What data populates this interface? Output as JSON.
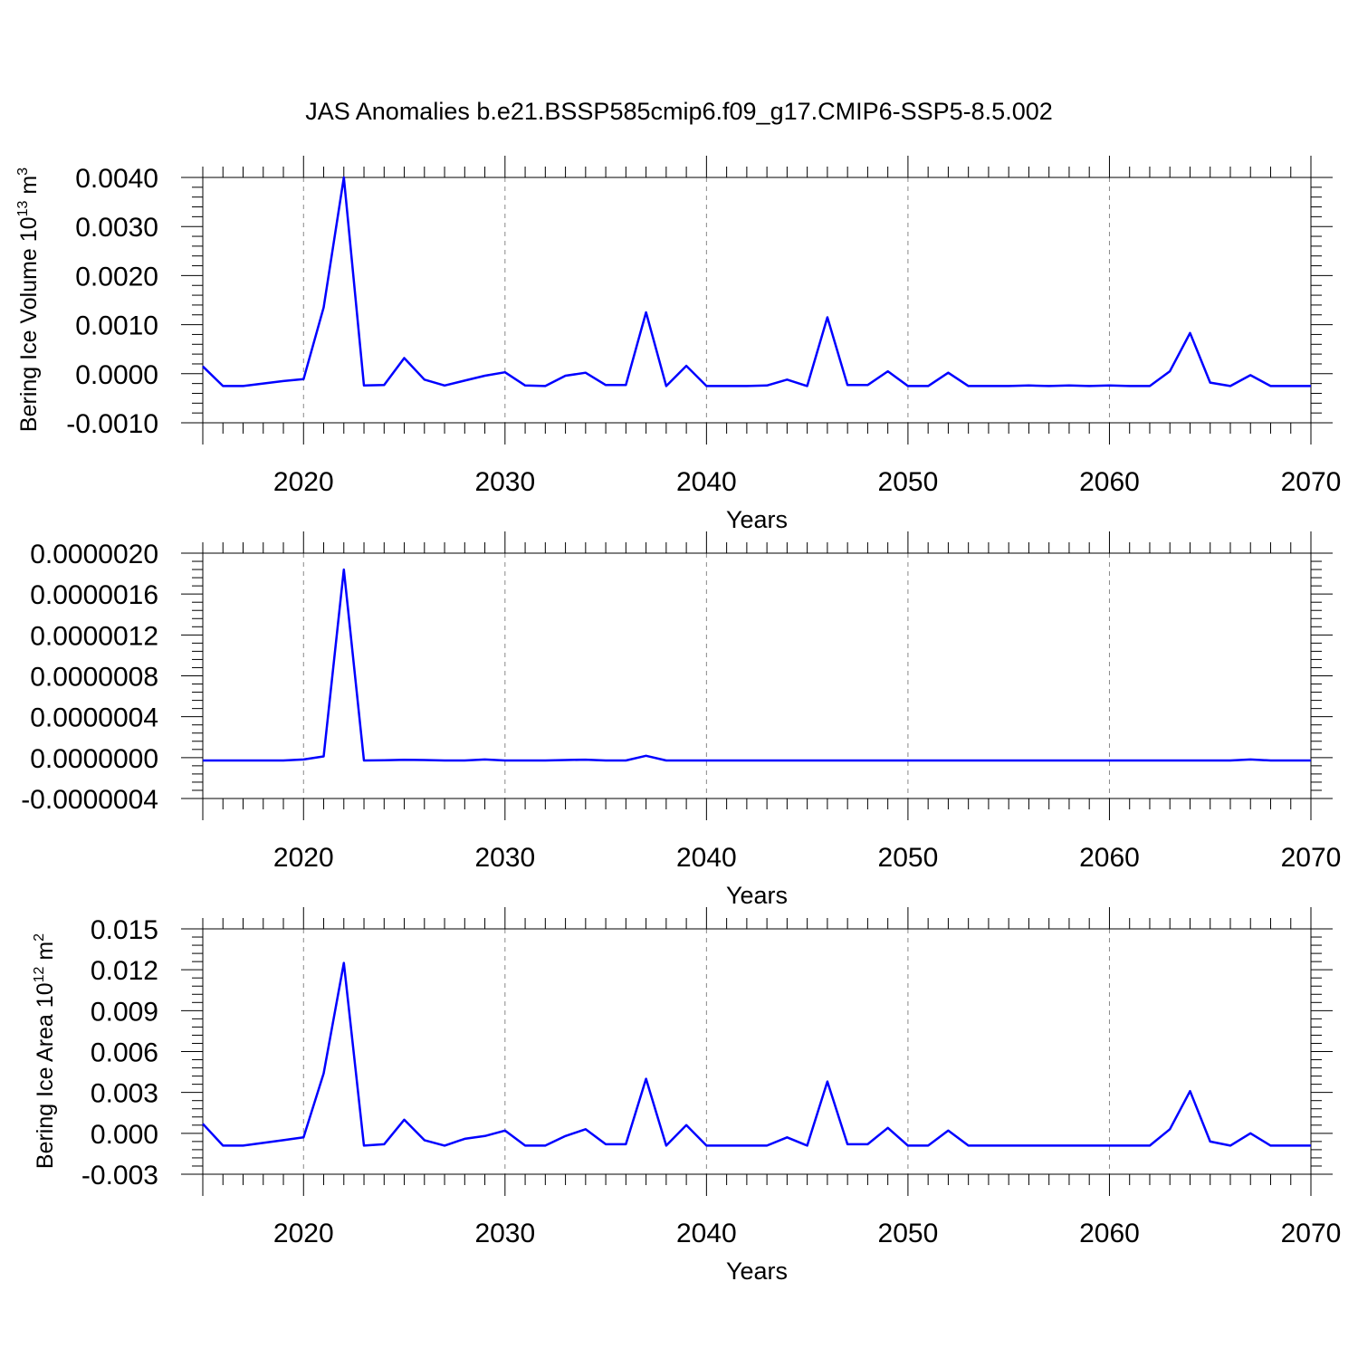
{
  "chart_data": {
    "title": "JAS Anomalies b.e21.BSSP585cmip6.f09_g17.CMIP6-SSP5-8.5.002",
    "panels": [
      {
        "type": "line",
        "xlabel": "Years",
        "ylabel": {
          "prefix": "Bering Ice Volume 10",
          "exponent": "13",
          "unit": " m",
          "unit_exponent": "3"
        },
        "xlim": [
          2015,
          2070
        ],
        "ylim": [
          -0.001,
          0.004
        ],
        "yticks": [
          -0.001,
          0.0,
          0.001,
          0.002,
          0.003,
          0.004
        ],
        "ytick_labels": [
          "-0.0010",
          "0.0000",
          "0.0010",
          "0.0020",
          "0.0030",
          "0.0040"
        ],
        "xticks": [
          2020,
          2030,
          2040,
          2050,
          2060,
          2070
        ],
        "xtick_labels": [
          "2020",
          "2030",
          "2040",
          "2050",
          "2060",
          "2070"
        ],
        "grid": "vertical dashed",
        "color": "#0000ff",
        "x": [
          2015,
          2016,
          2017,
          2018,
          2019,
          2020,
          2021,
          2022,
          2023,
          2024,
          2025,
          2026,
          2027,
          2028,
          2029,
          2030,
          2031,
          2032,
          2033,
          2034,
          2035,
          2036,
          2037,
          2038,
          2039,
          2040,
          2041,
          2042,
          2043,
          2044,
          2045,
          2046,
          2047,
          2048,
          2049,
          2050,
          2051,
          2052,
          2053,
          2054,
          2055,
          2056,
          2057,
          2058,
          2059,
          2060,
          2061,
          2062,
          2063,
          2064,
          2065,
          2066,
          2067,
          2068,
          2069,
          2070
        ],
        "values": [
          0.00015,
          -0.00025,
          -0.00025,
          -0.0002,
          -0.00015,
          -0.00011,
          0.00135,
          0.004,
          -0.00024,
          -0.00023,
          0.00032,
          -0.00012,
          -0.00024,
          -0.00014,
          -4e-05,
          3e-05,
          -0.00024,
          -0.00025,
          -4e-05,
          2e-05,
          -0.00023,
          -0.00023,
          0.00125,
          -0.00025,
          0.00016,
          -0.00025,
          -0.00025,
          -0.00025,
          -0.00024,
          -0.00012,
          -0.00025,
          0.00115,
          -0.00023,
          -0.00023,
          5e-05,
          -0.00025,
          -0.00025,
          2e-05,
          -0.00025,
          -0.00025,
          -0.00025,
          -0.00024,
          -0.00025,
          -0.00024,
          -0.00025,
          -0.00024,
          -0.00025,
          -0.00025,
          5e-05,
          0.00083,
          -0.00018,
          -0.00025,
          -3e-05,
          -0.00025,
          -0.00025,
          -0.00025
        ]
      },
      {
        "type": "line",
        "xlabel": "Years",
        "ylabel": null,
        "xlim": [
          2015,
          2070
        ],
        "ylim": [
          -4e-07,
          2e-06
        ],
        "yticks": [
          -4e-07,
          0.0,
          4e-07,
          8e-07,
          1.2e-06,
          1.6e-06,
          2e-06
        ],
        "ytick_labels": [
          "-0.0000004",
          "0.0000000",
          "0.0000004",
          "0.0000008",
          "0.0000012",
          "0.0000016",
          "0.0000020"
        ],
        "xticks": [
          2020,
          2030,
          2040,
          2050,
          2060,
          2070
        ],
        "xtick_labels": [
          "2020",
          "2030",
          "2040",
          "2050",
          "2060",
          "2070"
        ],
        "grid": "vertical dashed",
        "color": "#0000ff",
        "x": [
          2015,
          2016,
          2017,
          2018,
          2019,
          2020,
          2021,
          2022,
          2023,
          2024,
          2025,
          2026,
          2027,
          2028,
          2029,
          2030,
          2031,
          2032,
          2033,
          2034,
          2035,
          2036,
          2037,
          2038,
          2039,
          2040,
          2041,
          2042,
          2043,
          2044,
          2045,
          2046,
          2047,
          2048,
          2049,
          2050,
          2051,
          2052,
          2053,
          2054,
          2055,
          2056,
          2057,
          2058,
          2059,
          2060,
          2061,
          2062,
          2063,
          2064,
          2065,
          2066,
          2067,
          2068,
          2069,
          2070
        ],
        "values": [
          -2.8e-08,
          -2.8e-08,
          -2.8e-08,
          -2.8e-08,
          -2.8e-08,
          -1.8e-08,
          1.2e-08,
          1.84e-06,
          -2.8e-08,
          -2.6e-08,
          -2.2e-08,
          -2.4e-08,
          -2.8e-08,
          -2.8e-08,
          -1.8e-08,
          -2.8e-08,
          -2.8e-08,
          -2.8e-08,
          -2.4e-08,
          -2e-08,
          -2.8e-08,
          -2.8e-08,
          1.8e-08,
          -2.8e-08,
          -2.8e-08,
          -2.8e-08,
          -2.8e-08,
          -2.8e-08,
          -2.8e-08,
          -2.8e-08,
          -2.8e-08,
          -2.8e-08,
          -2.8e-08,
          -2.8e-08,
          -2.8e-08,
          -2.8e-08,
          -2.8e-08,
          -2.8e-08,
          -2.8e-08,
          -2.8e-08,
          -2.8e-08,
          -2.8e-08,
          -2.8e-08,
          -2.8e-08,
          -2.8e-08,
          -2.8e-08,
          -2.8e-08,
          -2.8e-08,
          -2.8e-08,
          -2.8e-08,
          -2.8e-08,
          -2.8e-08,
          -1.8e-08,
          -2.8e-08,
          -2.8e-08,
          -2.8e-08
        ]
      },
      {
        "type": "line",
        "xlabel": "Years",
        "ylabel": {
          "prefix": "Bering Ice Area 10",
          "exponent": "12",
          "unit": " m",
          "unit_exponent": "2"
        },
        "xlim": [
          2015,
          2070
        ],
        "ylim": [
          -0.003,
          0.015
        ],
        "yticks": [
          -0.003,
          0.0,
          0.003,
          0.006,
          0.009,
          0.012,
          0.015
        ],
        "ytick_labels": [
          "-0.003",
          "0.000",
          "0.003",
          "0.006",
          "0.009",
          "0.012",
          "0.015"
        ],
        "xticks": [
          2020,
          2030,
          2040,
          2050,
          2060,
          2070
        ],
        "xtick_labels": [
          "2020",
          "2030",
          "2040",
          "2050",
          "2060",
          "2070"
        ],
        "grid": "vertical dashed",
        "color": "#0000ff",
        "x": [
          2015,
          2016,
          2017,
          2018,
          2019,
          2020,
          2021,
          2022,
          2023,
          2024,
          2025,
          2026,
          2027,
          2028,
          2029,
          2030,
          2031,
          2032,
          2033,
          2034,
          2035,
          2036,
          2037,
          2038,
          2039,
          2040,
          2041,
          2042,
          2043,
          2044,
          2045,
          2046,
          2047,
          2048,
          2049,
          2050,
          2051,
          2052,
          2053,
          2054,
          2055,
          2056,
          2057,
          2058,
          2059,
          2060,
          2061,
          2062,
          2063,
          2064,
          2065,
          2066,
          2067,
          2068,
          2069,
          2070
        ],
        "values": [
          0.0007,
          -0.0009,
          -0.0009,
          -0.0007,
          -0.0005,
          -0.0003,
          0.0044,
          0.0125,
          -0.0009,
          -0.0008,
          0.001,
          -0.0005,
          -0.0009,
          -0.0004,
          -0.0002,
          0.0002,
          -0.0009,
          -0.0009,
          -0.0002,
          0.0003,
          -0.0008,
          -0.0008,
          0.004,
          -0.0009,
          0.0006,
          -0.0009,
          -0.0009,
          -0.0009,
          -0.0009,
          -0.0003,
          -0.0009,
          0.0038,
          -0.0008,
          -0.0008,
          0.0004,
          -0.0009,
          -0.0009,
          0.0002,
          -0.0009,
          -0.0009,
          -0.0009,
          -0.0009,
          -0.0009,
          -0.0009,
          -0.0009,
          -0.0009,
          -0.0009,
          -0.0009,
          0.0003,
          0.0031,
          -0.0006,
          -0.0009,
          0.0,
          -0.0009,
          -0.0009,
          -0.0009
        ]
      }
    ]
  }
}
